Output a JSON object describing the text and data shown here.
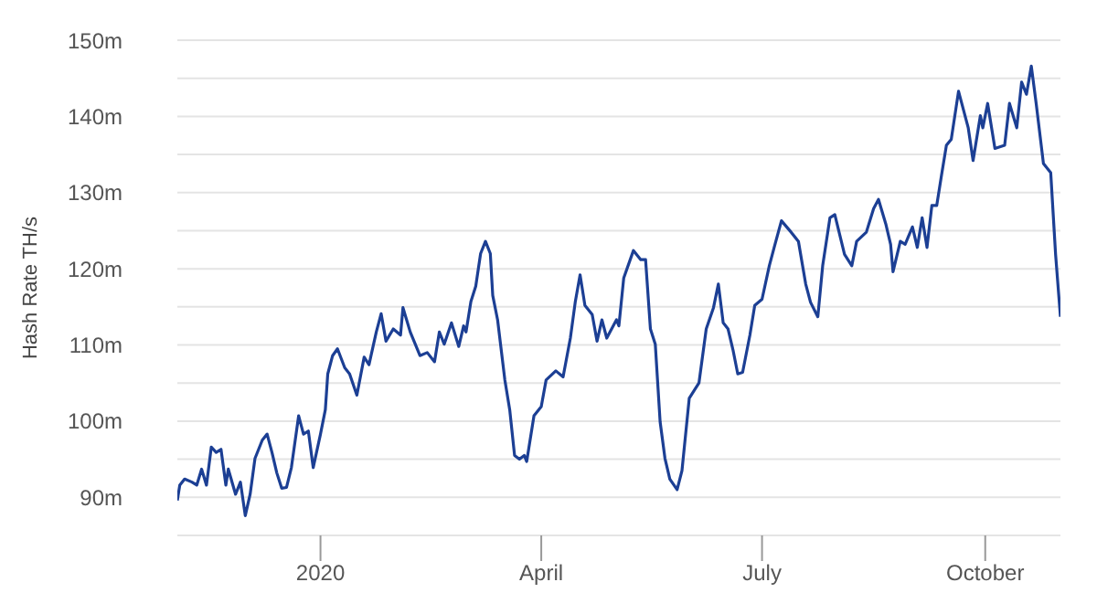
{
  "chart_data": {
    "type": "line",
    "ylabel": "Hash Rate TH/s",
    "x": [
      "2019-11-03",
      "2019-11-04",
      "2019-11-06",
      "2019-11-09",
      "2019-11-11",
      "2019-11-13",
      "2019-11-15",
      "2019-11-17",
      "2019-11-19",
      "2019-11-21",
      "2019-11-23",
      "2019-11-24",
      "2019-11-27",
      "2019-11-29",
      "2019-12-01",
      "2019-12-03",
      "2019-12-05",
      "2019-12-08",
      "2019-12-10",
      "2019-12-12",
      "2019-12-14",
      "2019-12-16",
      "2019-12-18",
      "2019-12-20",
      "2019-12-23",
      "2019-12-25",
      "2019-12-27",
      "2019-12-29",
      "2020-01-01",
      "2020-01-03",
      "2020-01-04",
      "2020-01-06",
      "2020-01-08",
      "2020-01-11",
      "2020-01-13",
      "2020-01-16",
      "2020-01-19",
      "2020-01-21",
      "2020-01-24",
      "2020-01-26",
      "2020-01-28",
      "2020-01-31",
      "2020-02-03",
      "2020-02-04",
      "2020-02-07",
      "2020-02-11",
      "2020-02-14",
      "2020-02-17",
      "2020-02-19",
      "2020-02-21",
      "2020-02-24",
      "2020-02-27",
      "2020-02-29",
      "2020-03-01",
      "2020-03-03",
      "2020-03-05",
      "2020-03-07",
      "2020-03-09",
      "2020-03-11",
      "2020-03-12",
      "2020-03-14",
      "2020-03-17",
      "2020-03-19",
      "2020-03-21",
      "2020-03-23",
      "2020-03-25",
      "2020-03-26",
      "2020-03-29",
      "2020-04-01",
      "2020-04-03",
      "2020-04-07",
      "2020-04-10",
      "2020-04-13",
      "2020-04-15",
      "2020-04-17",
      "2020-04-19",
      "2020-04-22",
      "2020-04-24",
      "2020-04-26",
      "2020-04-28",
      "2020-05-02",
      "2020-05-03",
      "2020-05-05",
      "2020-05-09",
      "2020-05-12",
      "2020-05-14",
      "2020-05-16",
      "2020-05-18",
      "2020-05-20",
      "2020-05-22",
      "2020-05-24",
      "2020-05-27",
      "2020-05-29",
      "2020-06-01",
      "2020-06-05",
      "2020-06-08",
      "2020-06-11",
      "2020-06-13",
      "2020-06-15",
      "2020-06-17",
      "2020-06-19",
      "2020-06-21",
      "2020-06-23",
      "2020-06-26",
      "2020-06-28",
      "2020-07-01",
      "2020-07-04",
      "2020-07-06",
      "2020-07-09",
      "2020-07-13",
      "2020-07-16",
      "2020-07-19",
      "2020-07-21",
      "2020-07-24",
      "2020-07-26",
      "2020-07-29",
      "2020-07-31",
      "2020-08-04",
      "2020-08-07",
      "2020-08-09",
      "2020-08-13",
      "2020-08-16",
      "2020-08-18",
      "2020-08-21",
      "2020-08-23",
      "2020-08-24",
      "2020-08-27",
      "2020-08-29",
      "2020-09-01",
      "2020-09-03",
      "2020-09-05",
      "2020-09-07",
      "2020-09-09",
      "2020-09-11",
      "2020-09-13",
      "2020-09-15",
      "2020-09-17",
      "2020-09-20",
      "2020-09-24",
      "2020-09-26",
      "2020-09-29",
      "2020-09-30",
      "2020-10-02",
      "2020-10-05",
      "2020-10-09",
      "2020-10-11",
      "2020-10-14",
      "2020-10-16",
      "2020-10-18",
      "2020-10-20",
      "2020-10-22",
      "2020-10-25",
      "2020-10-28",
      "2020-10-30",
      "2020-11-01"
    ],
    "series": [
      {
        "color": "#1c3f94",
        "values": [
          89.6,
          91.6,
          92.4,
          92,
          91.6,
          93.7,
          91.6,
          96.6,
          95.9,
          96.3,
          91.6,
          93.7,
          90.4,
          92,
          87.6,
          90.4,
          95.1,
          97.5,
          98.3,
          95.9,
          93.2,
          91.2,
          91.3,
          93.9,
          100.7,
          98.3,
          98.7,
          93.9,
          98.3,
          101.5,
          106.2,
          108.6,
          109.5,
          107,
          106.2,
          103.4,
          108.4,
          107.4,
          111.7,
          114.1,
          110.5,
          112.1,
          111.3,
          114.9,
          111.7,
          108.6,
          109,
          107.8,
          111.7,
          110.1,
          112.9,
          109.8,
          112.5,
          111.7,
          115.7,
          117.7,
          122,
          123.6,
          122,
          116.5,
          113.3,
          105.4,
          101.5,
          95.5,
          95,
          95.5,
          94.7,
          100.7,
          101.9,
          105.4,
          106.6,
          105.8,
          110.9,
          115.6,
          119.2,
          115.2,
          114,
          110.5,
          113.3,
          110.9,
          113.3,
          112.5,
          118.8,
          122.4,
          121.2,
          121.2,
          112.1,
          110.1,
          99.9,
          95.1,
          92.4,
          91,
          93.5,
          103,
          105,
          112.1,
          114.9,
          118,
          112.9,
          112.1,
          109.4,
          106.2,
          106.4,
          111.3,
          115.2,
          116,
          120.4,
          122.8,
          126.3,
          124.8,
          123.6,
          118,
          115.6,
          113.7,
          120.4,
          126.7,
          127.1,
          121.9,
          120.4,
          123.6,
          124.8,
          127.9,
          129.1,
          125.9,
          123.2,
          119.6,
          123.6,
          123.2,
          125.5,
          122.8,
          126.7,
          122.8,
          128.3,
          128.3,
          132.3,
          136.2,
          137,
          143.3,
          138.5,
          134.2,
          140.1,
          138.5,
          141.7,
          135.8,
          136.2,
          141.7,
          138.5,
          144.5,
          142.9,
          146.6,
          141.7,
          133.8,
          132.6,
          121.9,
          113.7
        ]
      }
    ],
    "xlim": [
      "2019-11-03",
      "2020-11-01"
    ],
    "xticks": [
      {
        "value": "2020-01-01",
        "label": "2020"
      },
      {
        "value": "2020-04-01",
        "label": "April"
      },
      {
        "value": "2020-07-01",
        "label": "July"
      },
      {
        "value": "2020-10-01",
        "label": "October"
      }
    ],
    "ylim": [
      85,
      150
    ],
    "yticks": [
      {
        "value": 85,
        "label": null
      },
      {
        "value": 90,
        "label": "90m"
      },
      {
        "value": 95,
        "label": null
      },
      {
        "value": 100,
        "label": "100m"
      },
      {
        "value": 105,
        "label": null
      },
      {
        "value": 110,
        "label": "110m"
      },
      {
        "value": 115,
        "label": null
      },
      {
        "value": 120,
        "label": "120m"
      },
      {
        "value": 125,
        "label": null
      },
      {
        "value": 130,
        "label": "130m"
      },
      {
        "value": 135,
        "label": null
      },
      {
        "value": 140,
        "label": "140m"
      },
      {
        "value": 145,
        "label": null
      },
      {
        "value": 150,
        "label": "150m"
      }
    ],
    "grid": "y",
    "legend": false,
    "marker": "none",
    "line_style": "solid"
  }
}
